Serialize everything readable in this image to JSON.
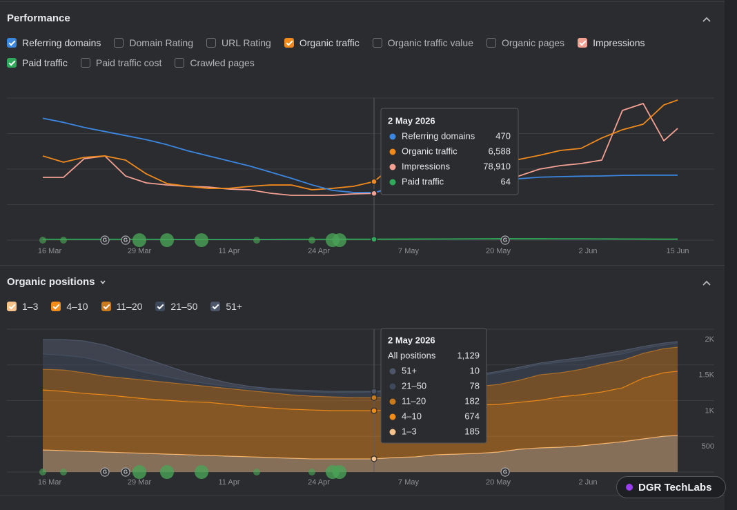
{
  "performance": {
    "title": "Performance",
    "metrics": [
      {
        "label": "Referring domains",
        "checked": true,
        "color": "#3b87e0"
      },
      {
        "label": "Domain Rating",
        "checked": false
      },
      {
        "label": "URL Rating",
        "checked": false
      },
      {
        "label": "Organic traffic",
        "checked": true,
        "color": "#f08a1c"
      },
      {
        "label": "Organic traffic value",
        "checked": false
      },
      {
        "label": "Organic pages",
        "checked": false
      },
      {
        "label": "Impressions",
        "checked": true,
        "color": "#f4a193"
      },
      {
        "label": "Paid traffic",
        "checked": true,
        "color": "#2faa5a"
      },
      {
        "label": "Paid traffic cost",
        "checked": false
      },
      {
        "label": "Crawled pages",
        "checked": false
      }
    ]
  },
  "organic_positions": {
    "title": "Organic positions"
  },
  "markers": {
    "google_update_icon": "G"
  },
  "badge": "DGR TechLabs",
  "chart_data": [
    {
      "type": "line",
      "x": [
        "2026-03-15",
        "2026-03-18",
        "2026-03-21",
        "2026-03-24",
        "2026-03-27",
        "2026-03-30",
        "2026-04-02",
        "2026-04-05",
        "2026-04-08",
        "2026-04-11",
        "2026-04-14",
        "2026-04-17",
        "2026-04-20",
        "2026-04-23",
        "2026-04-26",
        "2026-04-29",
        "2026-05-02",
        "2026-05-05",
        "2026-05-08",
        "2026-05-11",
        "2026-05-14",
        "2026-05-17",
        "2026-05-20",
        "2026-05-23",
        "2026-05-26",
        "2026-05-29",
        "2026-06-01",
        "2026-06-04",
        "2026-06-07",
        "2026-06-10",
        "2026-06-13",
        "2026-06-15"
      ],
      "xlim": [
        "2026-03-15",
        "2026-06-15"
      ],
      "xticks": [
        {
          "value": "2026-03-16",
          "label": "16 Mar"
        },
        {
          "value": "2026-03-29",
          "label": "29 Mar"
        },
        {
          "value": "2026-04-11",
          "label": "11 Apr"
        },
        {
          "value": "2026-04-24",
          "label": "24 Apr"
        },
        {
          "value": "2026-05-07",
          "label": "7 May"
        },
        {
          "value": "2026-05-20",
          "label": "20 May"
        },
        {
          "value": "2026-06-02",
          "label": "2 Jun"
        },
        {
          "value": "2026-06-15",
          "label": "15 Jun"
        }
      ],
      "grid": true,
      "tooltip": {
        "title": "2 May 2026"
      },
      "series": [
        {
          "name": "Referring domains",
          "color": "#3b87e0",
          "ylim": [
            0,
            1400
          ],
          "values": [
            1200,
            1160,
            1110,
            1070,
            1030,
            990,
            940,
            880,
            830,
            780,
            730,
            670,
            610,
            545,
            490,
            470,
            470,
            515,
            545,
            565,
            580,
            585,
            600,
            605,
            620,
            625,
            630,
            632,
            638,
            640,
            640,
            640
          ]
        },
        {
          "name": "Organic traffic",
          "color": "#f08a1c",
          "ylim": [
            0,
            16000
          ],
          "values": [
            9480,
            8780,
            9320,
            9480,
            9010,
            7460,
            6370,
            6060,
            5830,
            5830,
            6060,
            6210,
            6210,
            5670,
            5830,
            6060,
            6588,
            8540,
            8700,
            8700,
            8780,
            8850,
            9010,
            9090,
            9550,
            10100,
            10330,
            11500,
            12430,
            13050,
            15220,
            15770
          ],
          "value_labels": [
            null,
            null,
            null,
            null,
            null,
            null,
            null,
            null,
            null,
            null,
            null,
            null,
            null,
            null,
            null,
            null,
            "6,588",
            null,
            null,
            null,
            null,
            null,
            null,
            null,
            null,
            null,
            null,
            null,
            null,
            null,
            null,
            null
          ]
        },
        {
          "name": "Impressions",
          "color": "#f4a193",
          "ylim": [
            0,
            240000
          ],
          "values": [
            106000,
            106000,
            137500,
            142100,
            108300,
            96700,
            93200,
            90900,
            89700,
            86200,
            85000,
            79200,
            75700,
            75700,
            75700,
            78100,
            78910,
            93200,
            100200,
            102500,
            103700,
            104900,
            106000,
            108300,
            120000,
            125800,
            129300,
            135100,
            219000,
            230700,
            167800,
            188700
          ],
          "value_labels": [
            null,
            null,
            null,
            null,
            null,
            null,
            null,
            null,
            null,
            null,
            null,
            null,
            null,
            null,
            null,
            null,
            "78,910",
            null,
            null,
            null,
            null,
            null,
            null,
            null,
            null,
            null,
            null,
            null,
            null,
            null,
            null,
            null
          ]
        },
        {
          "name": "Paid traffic",
          "color": "#2faa5a",
          "ylim": [
            0,
            10000
          ],
          "values": [
            60,
            60,
            60,
            60,
            60,
            60,
            55,
            55,
            55,
            55,
            55,
            55,
            60,
            60,
            62,
            63,
            64,
            70,
            75,
            80,
            85,
            90,
            95,
            95,
            95,
            90,
            90,
            85,
            80,
            75,
            70,
            70
          ]
        }
      ]
    },
    {
      "type": "area",
      "stacked": true,
      "x": [
        "2026-03-15",
        "2026-03-18",
        "2026-03-21",
        "2026-03-24",
        "2026-03-27",
        "2026-03-30",
        "2026-04-02",
        "2026-04-05",
        "2026-04-08",
        "2026-04-11",
        "2026-04-14",
        "2026-04-17",
        "2026-04-20",
        "2026-04-23",
        "2026-04-26",
        "2026-04-29",
        "2026-05-02",
        "2026-05-05",
        "2026-05-08",
        "2026-05-11",
        "2026-05-14",
        "2026-05-17",
        "2026-05-20",
        "2026-05-23",
        "2026-05-26",
        "2026-05-29",
        "2026-06-01",
        "2026-06-04",
        "2026-06-07",
        "2026-06-10",
        "2026-06-13",
        "2026-06-15"
      ],
      "xlim": [
        "2026-03-15",
        "2026-06-15"
      ],
      "xticks": [
        {
          "value": "2026-03-16",
          "label": "16 Mar"
        },
        {
          "value": "2026-03-29",
          "label": "29 Mar"
        },
        {
          "value": "2026-04-11",
          "label": "11 Apr"
        },
        {
          "value": "2026-04-24",
          "label": "24 Apr"
        },
        {
          "value": "2026-05-07",
          "label": "7 May"
        },
        {
          "value": "2026-05-20",
          "label": "20 May"
        },
        {
          "value": "2026-06-02",
          "label": "2 Jun"
        },
        {
          "value": "2026-06-15",
          "label": "15 Jun"
        }
      ],
      "ylim": [
        0,
        2000
      ],
      "yticks": [
        500,
        {
          "value": 1000,
          "label": "1K"
        },
        {
          "value": 1500,
          "label": "1.5K"
        },
        {
          "value": 2000,
          "label": "2K"
        }
      ],
      "y_axis_side": "right",
      "grid": true,
      "tooltip": {
        "title": "2 May 2026",
        "total_label": "All positions",
        "total": {
          "value": 1129,
          "label": "1,129"
        }
      },
      "series": [
        {
          "name": "1–3",
          "color": "#f6c28b",
          "checked": true,
          "values": [
            309,
            300,
            290,
            280,
            271,
            261,
            251,
            242,
            232,
            222,
            213,
            203,
            193,
            184,
            184,
            184,
            185,
            203,
            213,
            242,
            251,
            261,
            280,
            319,
            338,
            348,
            367,
            396,
            425,
            464,
            502,
            512
          ]
        },
        {
          "name": "4–10",
          "color": "#f28c18",
          "checked": true,
          "values": [
            841,
            830,
            811,
            802,
            782,
            763,
            754,
            743,
            744,
            725,
            705,
            695,
            686,
            685,
            676,
            676,
            674,
            666,
            676,
            666,
            676,
            676,
            667,
            657,
            667,
            705,
            715,
            725,
            754,
            850,
            889,
            899
          ]
        },
        {
          "name": "11–20",
          "color": "#c97a1f",
          "checked": true,
          "values": [
            289,
            300,
            290,
            261,
            261,
            261,
            251,
            242,
            222,
            222,
            222,
            213,
            203,
            194,
            193,
            183,
            182,
            184,
            183,
            193,
            223,
            261,
            280,
            309,
            357,
            338,
            357,
            386,
            386,
            348,
            338,
            338
          ]
        },
        {
          "name": "21–50",
          "color": "#3e4a5c",
          "checked": true,
          "values": [
            213,
            203,
            213,
            193,
            145,
            106,
            77,
            48,
            38,
            29,
            29,
            39,
            48,
            58,
            58,
            68,
            78,
            77,
            97,
            135,
            144,
            145,
            164,
            154,
            145,
            145,
            126,
            106,
            87,
            67,
            48,
            57
          ]
        },
        {
          "name": "51+",
          "color": "#4e5769",
          "checked": true,
          "values": [
            203,
            222,
            231,
            241,
            222,
            193,
            155,
            116,
            78,
            48,
            29,
            19,
            20,
            19,
            19,
            19,
            10,
            20,
            29,
            29,
            20,
            19,
            19,
            29,
            19,
            29,
            39,
            39,
            48,
            29,
            29,
            20
          ]
        }
      ]
    }
  ]
}
